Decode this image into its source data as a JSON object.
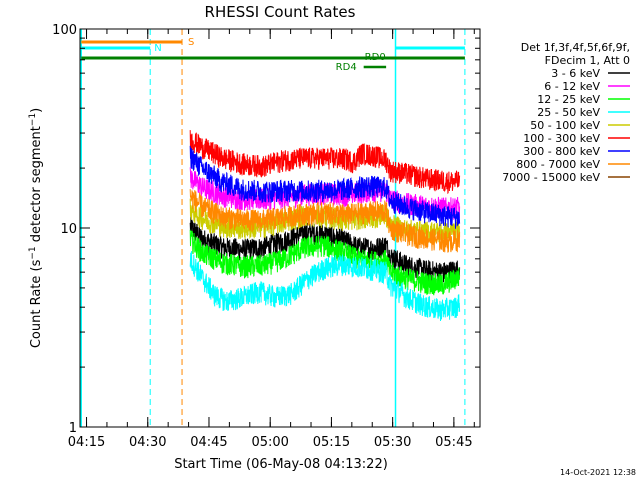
{
  "chart_data": {
    "type": "line",
    "title": "RHESSI Count Rates",
    "xlabel": "Start Time (06-May-08 04:13:22)",
    "ylabel_main": "Count Rate (s",
    "ylabel_sup1": "−1",
    "ylabel_mid": " detector segment",
    "ylabel_sup2": "−1",
    "ylabel_end": ")",
    "yscale": "log",
    "xlim_minutes": [
      0,
      98
    ],
    "ylim": [
      1,
      100
    ],
    "x_ticks": [
      {
        "label": "04:15",
        "minute": 1.6
      },
      {
        "label": "04:30",
        "minute": 16.6
      },
      {
        "label": "04:45",
        "minute": 31.6
      },
      {
        "label": "05:00",
        "minute": 46.6
      },
      {
        "label": "05:15",
        "minute": 61.6
      },
      {
        "label": "05:30",
        "minute": 76.6
      },
      {
        "label": "05:45",
        "minute": 91.6
      }
    ],
    "y_ticks": [
      {
        "label": "1",
        "value": 1
      },
      {
        "label": "10",
        "value": 10
      },
      {
        "label": "100",
        "value": 100
      }
    ],
    "legend": {
      "header1": "Det 1f,3f,4f,5f,6f,9f,",
      "header2": "FDecim 1, Att 0",
      "position": "right"
    },
    "series": [
      {
        "name": "3 - 6 keV",
        "color": "#000000",
        "points": [
          [
            27,
            10.2
          ],
          [
            30,
            8.8
          ],
          [
            35,
            8.0
          ],
          [
            40,
            7.8
          ],
          [
            45,
            8.0
          ],
          [
            50,
            8.6
          ],
          [
            55,
            9.5
          ],
          [
            60,
            9.3
          ],
          [
            65,
            8.6
          ],
          [
            68,
            8.0
          ],
          [
            72,
            7.9
          ],
          [
            75,
            8.2
          ],
          [
            76,
            7.2
          ],
          [
            80,
            6.5
          ],
          [
            85,
            6.1
          ],
          [
            89,
            6.0
          ],
          [
            93,
            6.2
          ]
        ]
      },
      {
        "name": "6 - 12 keV",
        "color": "#ff00ff",
        "points": [
          [
            27,
            18.0
          ],
          [
            30,
            16.0
          ],
          [
            35,
            14.6
          ],
          [
            40,
            14.0
          ],
          [
            45,
            14.0
          ],
          [
            50,
            14.3
          ],
          [
            55,
            14.8
          ],
          [
            60,
            14.9
          ],
          [
            65,
            14.7
          ],
          [
            70,
            15.3
          ],
          [
            75,
            15.5
          ],
          [
            76,
            14.0
          ],
          [
            80,
            13.3
          ],
          [
            85,
            12.9
          ],
          [
            90,
            12.6
          ],
          [
            93,
            12.7
          ]
        ]
      },
      {
        "name": "12 - 25 keV",
        "color": "#00ff00",
        "points": [
          [
            27,
            8.8
          ],
          [
            30,
            7.5
          ],
          [
            35,
            6.7
          ],
          [
            40,
            6.4
          ],
          [
            45,
            6.5
          ],
          [
            50,
            7.0
          ],
          [
            55,
            8.0
          ],
          [
            60,
            8.2
          ],
          [
            65,
            7.5
          ],
          [
            68,
            7.0
          ],
          [
            72,
            6.8
          ],
          [
            75,
            6.9
          ],
          [
            76,
            6.0
          ],
          [
            80,
            5.6
          ],
          [
            85,
            5.3
          ],
          [
            89,
            5.2
          ],
          [
            93,
            5.7
          ]
        ]
      },
      {
        "name": "25 - 50 keV",
        "color": "#00ffff",
        "points": [
          [
            27,
            7.0
          ],
          [
            30,
            5.6
          ],
          [
            33,
            4.6
          ],
          [
            36,
            4.3
          ],
          [
            40,
            4.5
          ],
          [
            44,
            4.8
          ],
          [
            48,
            4.5
          ],
          [
            52,
            4.7
          ],
          [
            56,
            5.6
          ],
          [
            60,
            6.3
          ],
          [
            64,
            6.6
          ],
          [
            68,
            6.4
          ],
          [
            72,
            6.2
          ],
          [
            75,
            6.0
          ],
          [
            76,
            5.2
          ],
          [
            80,
            4.5
          ],
          [
            84,
            4.1
          ],
          [
            88,
            3.9
          ],
          [
            92,
            4.0
          ],
          [
            93,
            4.3
          ]
        ]
      },
      {
        "name": "50 - 100 keV",
        "color": "#cccc00",
        "points": [
          [
            27,
            12.5
          ],
          [
            30,
            11.2
          ],
          [
            35,
            10.2
          ],
          [
            40,
            10.0
          ],
          [
            45,
            10.2
          ],
          [
            50,
            10.8
          ],
          [
            55,
            11.6
          ],
          [
            60,
            11.5
          ],
          [
            65,
            11.0
          ],
          [
            70,
            11.3
          ],
          [
            75,
            11.6
          ],
          [
            76,
            10.4
          ],
          [
            80,
            9.8
          ],
          [
            85,
            9.6
          ],
          [
            90,
            9.5
          ],
          [
            93,
            9.8
          ]
        ]
      },
      {
        "name": "100 - 300 keV",
        "color": "#ff0000",
        "points": [
          [
            27,
            28.0
          ],
          [
            30,
            25.5
          ],
          [
            35,
            22.5
          ],
          [
            40,
            21.0
          ],
          [
            45,
            20.5
          ],
          [
            50,
            22.0
          ],
          [
            55,
            22.5
          ],
          [
            60,
            22.5
          ],
          [
            65,
            22.3
          ],
          [
            67,
            21.5
          ],
          [
            69,
            23.8
          ],
          [
            72,
            23.2
          ],
          [
            75,
            22.0
          ],
          [
            76,
            19.5
          ],
          [
            80,
            18.8
          ],
          [
            85,
            17.7
          ],
          [
            90,
            17.2
          ],
          [
            93,
            17.2
          ]
        ]
      },
      {
        "name": "300 - 800 keV",
        "color": "#0000ff",
        "points": [
          [
            27,
            23.0
          ],
          [
            30,
            20.0
          ],
          [
            35,
            17.0
          ],
          [
            40,
            15.7
          ],
          [
            45,
            15.3
          ],
          [
            50,
            15.5
          ],
          [
            55,
            15.4
          ],
          [
            60,
            15.5
          ],
          [
            65,
            15.7
          ],
          [
            70,
            16.3
          ],
          [
            75,
            16.0
          ],
          [
            76,
            13.8
          ],
          [
            80,
            12.8
          ],
          [
            85,
            12.0
          ],
          [
            90,
            11.5
          ],
          [
            93,
            11.3
          ]
        ]
      },
      {
        "name": "800 - 7000 keV",
        "color": "#ff8800",
        "points": [
          [
            27,
            14.5
          ],
          [
            30,
            12.8
          ],
          [
            35,
            11.4
          ],
          [
            40,
            11.0
          ],
          [
            45,
            11.0
          ],
          [
            50,
            11.4
          ],
          [
            55,
            11.8
          ],
          [
            60,
            12.0
          ],
          [
            65,
            11.7
          ],
          [
            70,
            12.0
          ],
          [
            75,
            12.2
          ],
          [
            76,
            10.0
          ],
          [
            80,
            9.3
          ],
          [
            85,
            8.9
          ],
          [
            90,
            8.6
          ],
          [
            93,
            8.7
          ]
        ]
      },
      {
        "name": "7000 - 15000 keV",
        "color": "#884400",
        "points": []
      }
    ],
    "markers": {
      "attenuator_S": {
        "label": "S",
        "color": "#ff8800",
        "bar_start": 0.3,
        "bar_end": 25.0,
        "dashed_line_at": 25.0
      },
      "night_N": {
        "label": "N",
        "color": "#00ffff",
        "bar_start": 0.3,
        "bar_end": 17.2,
        "dashed_line_at": 17.2
      },
      "night_bar2": {
        "color": "#00ffff",
        "bar_start": 77.3,
        "bar_end": 94.3,
        "dashed_line_at": 94.3
      },
      "saa_lines": [
        0.3,
        77.3
      ],
      "decimation_bar": {
        "color": "#008000",
        "bar_start": 0.3,
        "bar_end": 94.3
      },
      "RD0": {
        "label": "RD0",
        "color": "#008000",
        "bar_start": 69.5,
        "bar_end": 75.0
      },
      "RD4": {
        "label": "RD4",
        "color": "#008000",
        "bar_start": 69.5,
        "bar_end": 75.0
      }
    }
  },
  "timestamp": "14-Oct-2021 12:38"
}
